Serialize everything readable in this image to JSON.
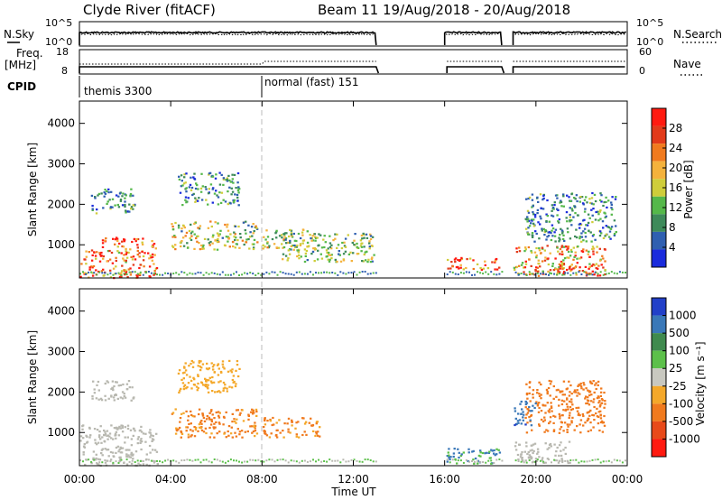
{
  "header": {
    "station": "Clyde River (fitACF)",
    "beam_info": "Beam 11   19/Aug/2018 - 20/Aug/2018"
  },
  "summary": {
    "nsky_label": "N.Sky",
    "nsky_ticks": [
      "10^5",
      "10^0"
    ],
    "nsearch_label": "N.Search",
    "nsearch_ticks": [
      "10^5",
      "10^0"
    ],
    "freq_label": "Freq.",
    "freq_unit": "[MHz]",
    "freq_ticks": [
      "18",
      "8"
    ],
    "nave_label": "Nave",
    "nave_ticks": [
      "60",
      "0"
    ],
    "cpid_label": "CPID",
    "cpid_segments": [
      {
        "label": "themis 3300",
        "start_hour": 0
      },
      {
        "label": "normal (fast) 151",
        "start_hour": 8
      }
    ],
    "data_gaps_hours": [
      [
        13,
        16
      ],
      [
        18.5,
        19
      ]
    ]
  },
  "colors": {
    "power": [
      "#1a2bdc",
      "#2f5fb0",
      "#3e8a5a",
      "#55b84a",
      "#cfcd3a",
      "#f4b23c",
      "#f07a1e",
      "#e23a1a",
      "#ff1a10"
    ],
    "velocity": [
      "#2240c8",
      "#3a78b8",
      "#3f8a4e",
      "#5cc04a",
      "#c8c8c0",
      "#f4a82a",
      "#f07a1e",
      "#e84a1a",
      "#ff1a10"
    ],
    "ground_scatter": "#b8b8b0"
  },
  "chart_data": [
    {
      "type": "heatmap",
      "title": "",
      "xlabel": "Time UT",
      "ylabel": "Slant Range [km]",
      "x_ticks": [
        "00:00",
        "04:00",
        "08:00",
        "12:00",
        "16:00",
        "20:00",
        "00:00"
      ],
      "xlim_hours": [
        0,
        24
      ],
      "ylim": [
        180,
        4550
      ],
      "y_ticks": [
        1000,
        2000,
        3000,
        4000
      ],
      "colorbar": {
        "label": "Power [dB]",
        "ticks": [
          "4",
          "8",
          "12",
          "16",
          "20",
          "24",
          "28"
        ],
        "range": [
          0,
          30
        ]
      },
      "regions": [
        {
          "t0": 0,
          "t1": 0.9,
          "r0": 200,
          "r1": 900,
          "value": 26
        },
        {
          "t0": 0.9,
          "t1": 3.4,
          "r0": 200,
          "r1": 1200,
          "value": 24
        },
        {
          "t0": 0.5,
          "t1": 2.4,
          "r0": 1800,
          "r1": 2400,
          "value": 8
        },
        {
          "t0": 4.0,
          "t1": 7.8,
          "r0": 900,
          "r1": 1600,
          "value": 14
        },
        {
          "t0": 8.0,
          "t1": 10.3,
          "r0": 900,
          "r1": 1400,
          "value": 14
        },
        {
          "t0": 4.3,
          "t1": 7.0,
          "r0": 2000,
          "r1": 2800,
          "value": 8
        },
        {
          "t0": 8.8,
          "t1": 12.9,
          "r0": 600,
          "r1": 1300,
          "value": 12
        },
        {
          "t0": 16.0,
          "t1": 18.4,
          "r0": 400,
          "r1": 700,
          "value": 25
        },
        {
          "t0": 19.0,
          "t1": 23.0,
          "r0": 250,
          "r1": 1000,
          "value": 20
        },
        {
          "t0": 20.8,
          "t1": 22.8,
          "r0": 250,
          "r1": 550,
          "value": 27
        },
        {
          "t0": 19.5,
          "t1": 23.5,
          "r0": 1100,
          "r1": 2300,
          "value": 8
        }
      ]
    },
    {
      "type": "heatmap",
      "title": "",
      "xlabel": "Time UT",
      "ylabel": "Slant Range [km]",
      "x_ticks": [
        "00:00",
        "04:00",
        "08:00",
        "12:00",
        "16:00",
        "20:00",
        "00:00"
      ],
      "xlim_hours": [
        0,
        24
      ],
      "ylim": [
        180,
        4550
      ],
      "y_ticks": [
        1000,
        2000,
        3000,
        4000
      ],
      "colorbar": {
        "label": "Velocity [m s⁻¹]",
        "ticks": [
          "1000",
          "500",
          "100",
          "25",
          "-25",
          "-100",
          "-500",
          "-1000"
        ],
        "range": [
          -1000,
          1000
        ]
      },
      "regions": [
        {
          "t0": 0,
          "t1": 3.4,
          "r0": 200,
          "r1": 1200,
          "value": 0
        },
        {
          "t0": 4.0,
          "t1": 7.8,
          "r0": 900,
          "r1": 1600,
          "value": -120
        },
        {
          "t0": 8.0,
          "t1": 10.5,
          "r0": 900,
          "r1": 1400,
          "value": -120
        },
        {
          "t0": 0.5,
          "t1": 2.4,
          "r0": 1800,
          "r1": 2300,
          "value": 0
        },
        {
          "t0": 4.3,
          "t1": 7.0,
          "r0": 2000,
          "r1": 2800,
          "value": -60
        },
        {
          "t0": 16.0,
          "t1": 18.4,
          "r0": 250,
          "r1": 650,
          "value": 120
        },
        {
          "t0": 19.0,
          "t1": 21.5,
          "r0": 250,
          "r1": 800,
          "value": 0
        },
        {
          "t0": 19.5,
          "t1": 23.0,
          "r0": 1000,
          "r1": 2300,
          "value": -300
        },
        {
          "t0": 19.0,
          "t1": 20.0,
          "r0": 1200,
          "r1": 1800,
          "value": 400
        }
      ]
    }
  ]
}
